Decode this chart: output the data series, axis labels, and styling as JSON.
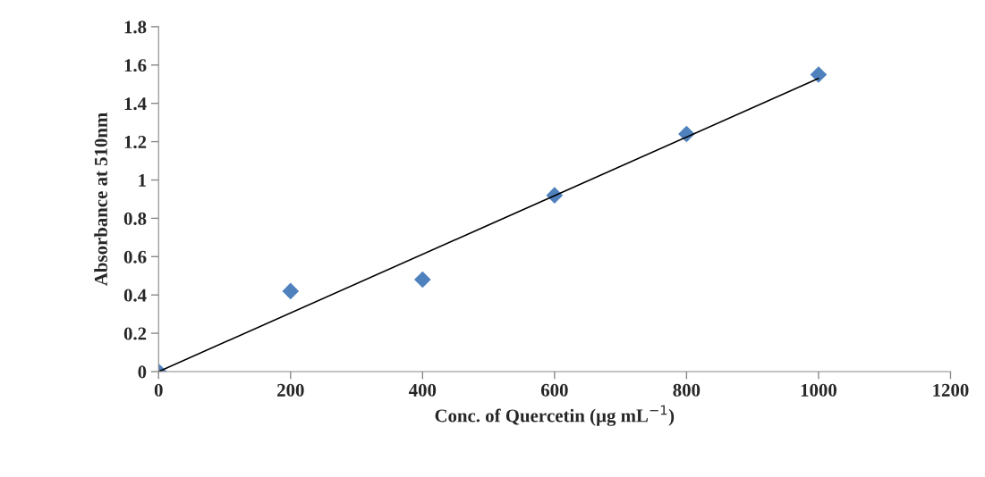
{
  "chart_data": {
    "type": "scatter",
    "xlabel": "Conc. of Quercetin (µg mL$^{−1}$)",
    "ylabel": "Absorbance at 510nm",
    "x": [
      0,
      200,
      400,
      600,
      800,
      1000
    ],
    "series": [
      {
        "color": "#4f81bd",
        "marker": "diamond",
        "values": [
          0,
          0.42,
          0.48,
          0.92,
          1.24,
          1.55
        ]
      },
      {
        "type": "line",
        "color": "#000000",
        "line_style": "solid",
        "x": [
          0,
          1000
        ],
        "values": [
          0,
          1.53
        ]
      }
    ],
    "xlim": [
      0,
      1200
    ],
    "xticks": [
      0,
      200,
      400,
      600,
      800,
      1000,
      1200
    ],
    "ylim": [
      0,
      1.8
    ],
    "yticks": [
      0,
      0.2,
      0.4,
      0.6,
      0.8,
      1,
      1.2,
      1.4,
      1.6,
      1.8
    ],
    "grid": false,
    "legend": false
  }
}
